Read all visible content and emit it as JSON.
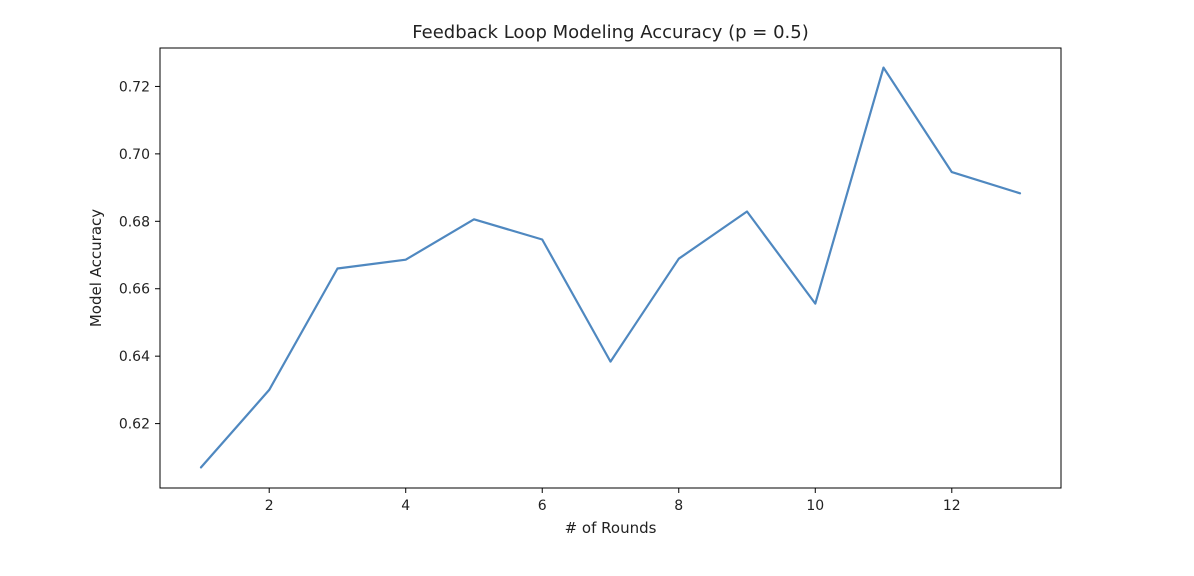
{
  "chart_data": {
    "type": "line",
    "title": "Feedback Loop Modeling Accuracy (p = 0.5)",
    "xlabel": "# of Rounds",
    "ylabel": "Model Accuracy",
    "xlim": [
      0.4,
      13.6
    ],
    "ylim": [
      0.6009,
      0.7314
    ],
    "xticks": [
      2,
      4,
      6,
      8,
      10,
      12
    ],
    "xtick_labels": [
      "2",
      "4",
      "6",
      "8",
      "10",
      "12"
    ],
    "yticks": [
      0.62,
      0.64,
      0.66,
      0.68,
      0.7,
      0.72
    ],
    "ytick_labels": [
      "0.62",
      "0.64",
      "0.66",
      "0.68",
      "0.70",
      "0.72"
    ],
    "grid": false,
    "series": [
      {
        "color": "#4f88c0",
        "x": [
          1,
          2,
          3,
          4,
          5,
          6,
          7,
          8,
          9,
          10,
          11,
          12,
          13
        ],
        "y": [
          0.607,
          0.63,
          0.666,
          0.6686,
          0.6806,
          0.6746,
          0.6384,
          0.6689,
          0.6829,
          0.6556,
          0.7256,
          0.6946,
          0.6883
        ]
      }
    ]
  }
}
